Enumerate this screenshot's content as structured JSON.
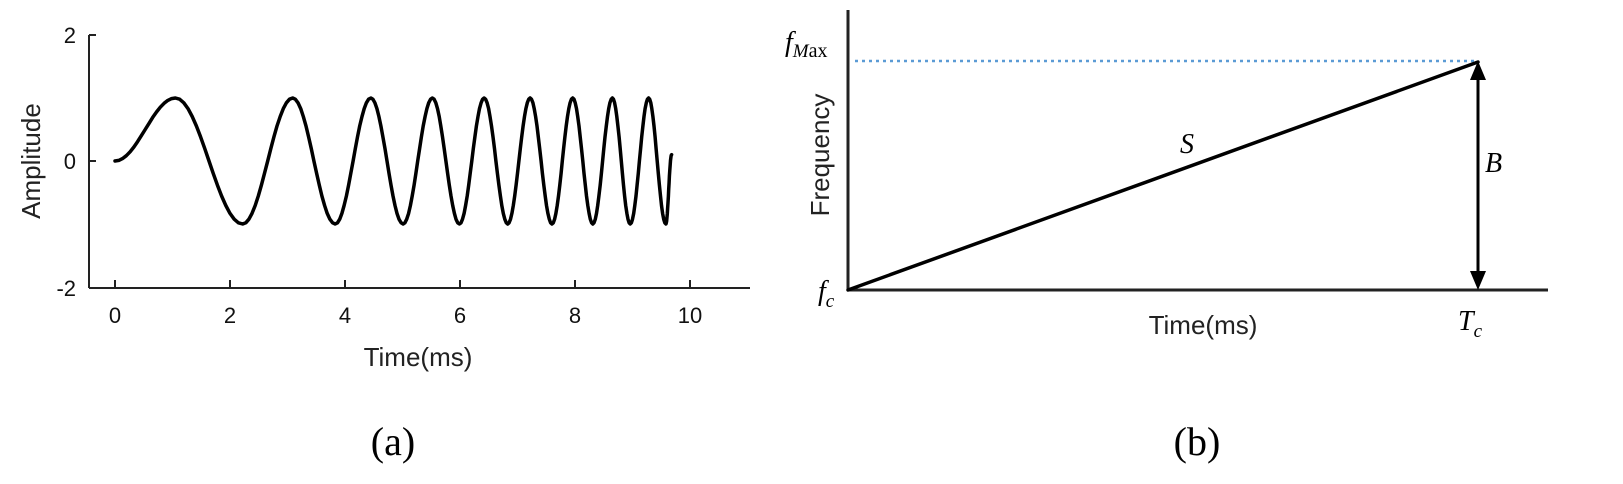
{
  "chart_data": [
    {
      "type": "line",
      "panel": "(a)",
      "xlabel": "Time(ms)",
      "ylabel": "Amplitude",
      "xlim": [
        0,
        11
      ],
      "ylim": [
        -2,
        2
      ],
      "xticks": [
        "0",
        "2",
        "4",
        "6",
        "8",
        "10"
      ],
      "yticks": [
        "2",
        "0",
        "-2"
      ],
      "series": [
        {
          "x": [
            0,
            1.05,
            2.22,
            3.09,
            3.83,
            4.45,
            5.01,
            5.52,
            5.99,
            6.42,
            6.83,
            7.22,
            7.6,
            7.96,
            8.31,
            8.65,
            8.96,
            9.28,
            9.58,
            9.68
          ],
          "y": [
            0,
            1,
            -1,
            1,
            -1,
            1,
            -1,
            1,
            -1,
            1,
            -1,
            1,
            -1,
            1,
            -1,
            1,
            -1,
            1,
            -1,
            0.1
          ]
        }
      ],
      "grid": false,
      "line_color": "#000000"
    },
    {
      "type": "line",
      "panel": "(b)",
      "xlabel": "Time(ms)",
      "ylabel": "Frequency",
      "annotations": {
        "f_c": "f",
        "f_c_sub": "c",
        "f_max": "f",
        "f_max_sub": "M",
        "f_max_suffix": "ax",
        "T_c": "T",
        "T_c_sub": "c",
        "slope": "S",
        "bandwidth": "B"
      },
      "series": [
        {
          "x": [
            0,
            1
          ],
          "y": [
            0,
            1
          ]
        }
      ],
      "reference_line": {
        "style": "dotted",
        "color": "#5b9bd5",
        "level": "f_max"
      },
      "grid": false
    }
  ],
  "captions": [
    "(a)",
    "(b)"
  ]
}
